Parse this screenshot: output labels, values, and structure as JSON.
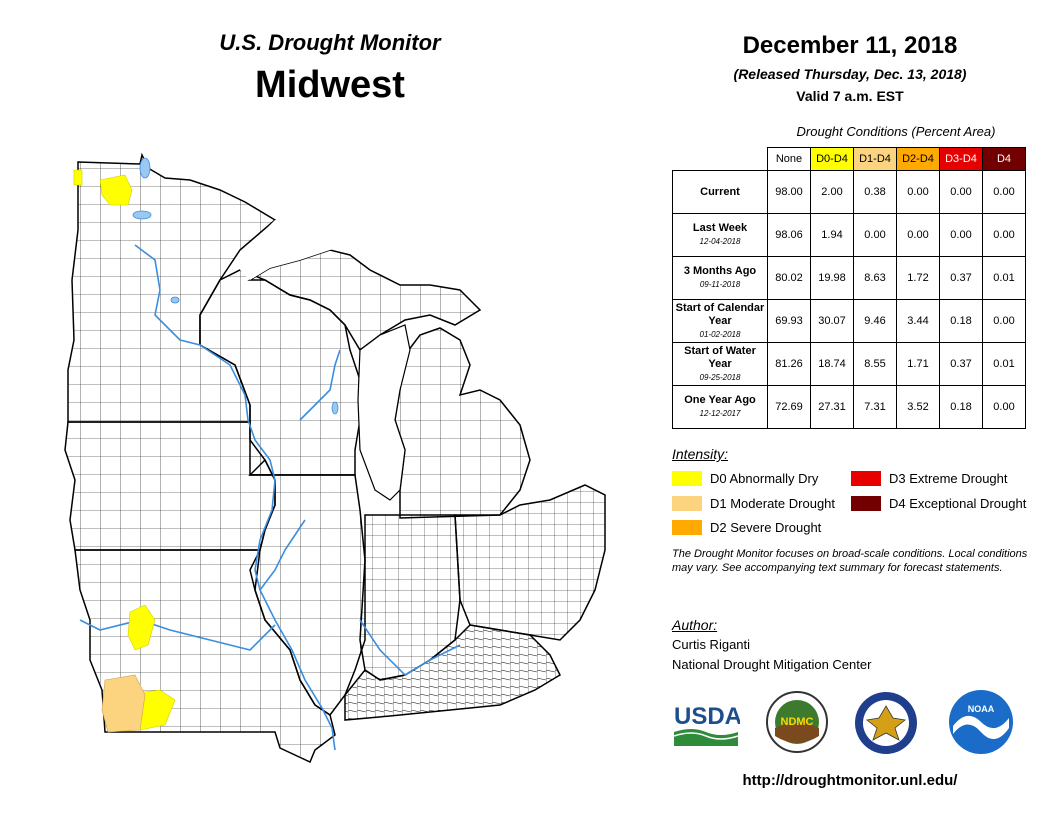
{
  "header": {
    "title": "U.S. Drought Monitor",
    "region": "Midwest",
    "date": "December 11, 2018",
    "released": "(Released Thursday, Dec. 13, 2018)",
    "valid": "Valid 7 a.m. EST"
  },
  "table": {
    "caption": "Drought Conditions (Percent Area)",
    "columns": [
      "None",
      "D0-D4",
      "D1-D4",
      "D2-D4",
      "D3-D4",
      "D4"
    ],
    "rows": [
      {
        "label": "Current",
        "sublabel": "",
        "values": [
          "98.00",
          "2.00",
          "0.38",
          "0.00",
          "0.00",
          "0.00"
        ]
      },
      {
        "label": "Last Week",
        "sublabel": "12-04-2018",
        "values": [
          "98.06",
          "1.94",
          "0.00",
          "0.00",
          "0.00",
          "0.00"
        ]
      },
      {
        "label": "3 Months Ago",
        "sublabel": "09-11-2018",
        "values": [
          "80.02",
          "19.98",
          "8.63",
          "1.72",
          "0.37",
          "0.01"
        ]
      },
      {
        "label": "Start of Calendar Year",
        "sublabel": "01-02-2018",
        "values": [
          "69.93",
          "30.07",
          "9.46",
          "3.44",
          "0.18",
          "0.00"
        ]
      },
      {
        "label": "Start of Water Year",
        "sublabel": "09-25-2018",
        "values": [
          "81.26",
          "18.74",
          "8.55",
          "1.71",
          "0.37",
          "0.01"
        ]
      },
      {
        "label": "One Year Ago",
        "sublabel": "12-12-2017",
        "values": [
          "72.69",
          "27.31",
          "7.31",
          "3.52",
          "0.18",
          "0.00"
        ]
      }
    ]
  },
  "legend": {
    "title": "Intensity:",
    "items": [
      {
        "label": "D0 Abnormally Dry",
        "color": "#ffff00"
      },
      {
        "label": "D1 Moderate Drought",
        "color": "#fcd37f"
      },
      {
        "label": "D2 Severe Drought",
        "color": "#ffaa00"
      },
      {
        "label": "D3 Extreme Drought",
        "color": "#e60000"
      },
      {
        "label": "D4 Exceptional Drought",
        "color": "#730000"
      }
    ]
  },
  "note": "The Drought Monitor focuses on broad-scale conditions. Local conditions may vary. See accompanying text summary for forecast statements.",
  "author": {
    "title": "Author:",
    "name": "Curtis Riganti",
    "org": "National Drought Mitigation Center"
  },
  "logos": {
    "usda": "USDA",
    "ndmc": "NDMC",
    "noaa": "NOAA"
  },
  "url": "http://droughtmonitor.unl.edu/",
  "map": {
    "colors": {
      "land": "#ffffff",
      "border": "#000000",
      "water": "#9cc8f0",
      "river": "#3a8ee0",
      "d0": "#ffff00",
      "d1": "#fcd37f"
    },
    "states": [
      "Minnesota",
      "Wisconsin",
      "Michigan",
      "Iowa",
      "Illinois",
      "Indiana",
      "Ohio",
      "Missouri",
      "Kentucky"
    ]
  }
}
